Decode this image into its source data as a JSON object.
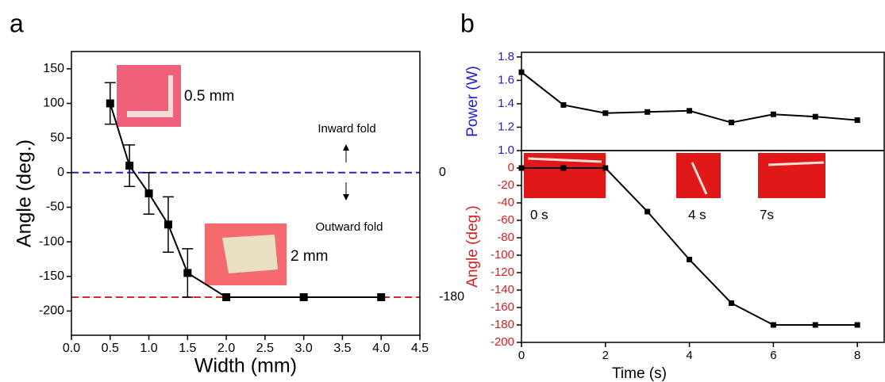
{
  "chart_data": [
    {
      "type": "line",
      "panel_label": "a",
      "x_label": "Width (mm)",
      "y_label": "Angle (deg.)",
      "x": [
        0.5,
        0.75,
        1,
        1.25,
        1.5,
        2,
        3,
        4
      ],
      "series": [
        {
          "color": "#000000",
          "values": [
            100,
            10,
            -30,
            -75,
            -145,
            -180,
            -180,
            -180
          ],
          "errors": [
            30,
            30,
            30,
            40,
            35,
            null,
            null,
            null
          ]
        }
      ],
      "xlim": [
        0,
        4.5
      ],
      "xticks": [
        {
          "value": 0,
          "label": "0.0"
        },
        0.5,
        {
          "value": 1,
          "label": "1.0"
        },
        1.5,
        {
          "value": 2,
          "label": "2.0"
        },
        2.5,
        {
          "value": 3,
          "label": "3.0"
        },
        3.5,
        {
          "value": 4,
          "label": "4.0"
        },
        4.5
      ],
      "ylim": [
        -235,
        175
      ],
      "yticks": [
        -200,
        -150,
        -100,
        -50,
        0,
        50,
        100,
        150
      ],
      "reference_lines": [
        {
          "value": 0,
          "color": "#2424c8"
        },
        {
          "value": -180,
          "color": "#d42a2a"
        }
      ],
      "annotations": [
        "0.5 mm",
        "Inward fold",
        "Outward fold",
        "2 mm"
      ]
    },
    {
      "type": "line",
      "panel_label": "b",
      "y_label": "Power (W)",
      "axis_color": "#1c1cd6",
      "x": [
        0,
        1,
        2,
        3,
        4,
        5,
        6,
        7,
        8
      ],
      "series": [
        {
          "color": "#000000",
          "values": [
            1.67,
            1.39,
            1.32,
            1.33,
            1.34,
            1.24,
            1.31,
            1.29,
            1.26
          ]
        }
      ],
      "xlim": [
        0,
        8.64
      ],
      "ylim": [
        1.0,
        1.84
      ],
      "yticks": [
        {
          "value": 1,
          "label": "1.0"
        },
        1.2,
        1.4,
        1.6,
        1.8
      ]
    },
    {
      "type": "line",
      "x_label": "Time (s)",
      "y_label": "Angle (deg.)",
      "axis_color": "#d42020",
      "x": [
        0,
        1,
        2,
        3,
        4,
        5,
        6,
        7,
        8
      ],
      "series": [
        {
          "color": "#000000",
          "values": [
            0,
            0,
            0,
            -50,
            -105,
            -155,
            -180,
            -180,
            -180
          ]
        }
      ],
      "xlim": [
        0,
        8.64
      ],
      "xticks": [
        0,
        2,
        4,
        6,
        8
      ],
      "ylim": [
        -200,
        20
      ],
      "yticks": [
        0,
        -20,
        -40,
        -60,
        -80,
        -100,
        -120,
        -140,
        -160,
        -180,
        -200
      ],
      "annotations": [
        "0 s",
        "4 s",
        "7s"
      ]
    }
  ]
}
